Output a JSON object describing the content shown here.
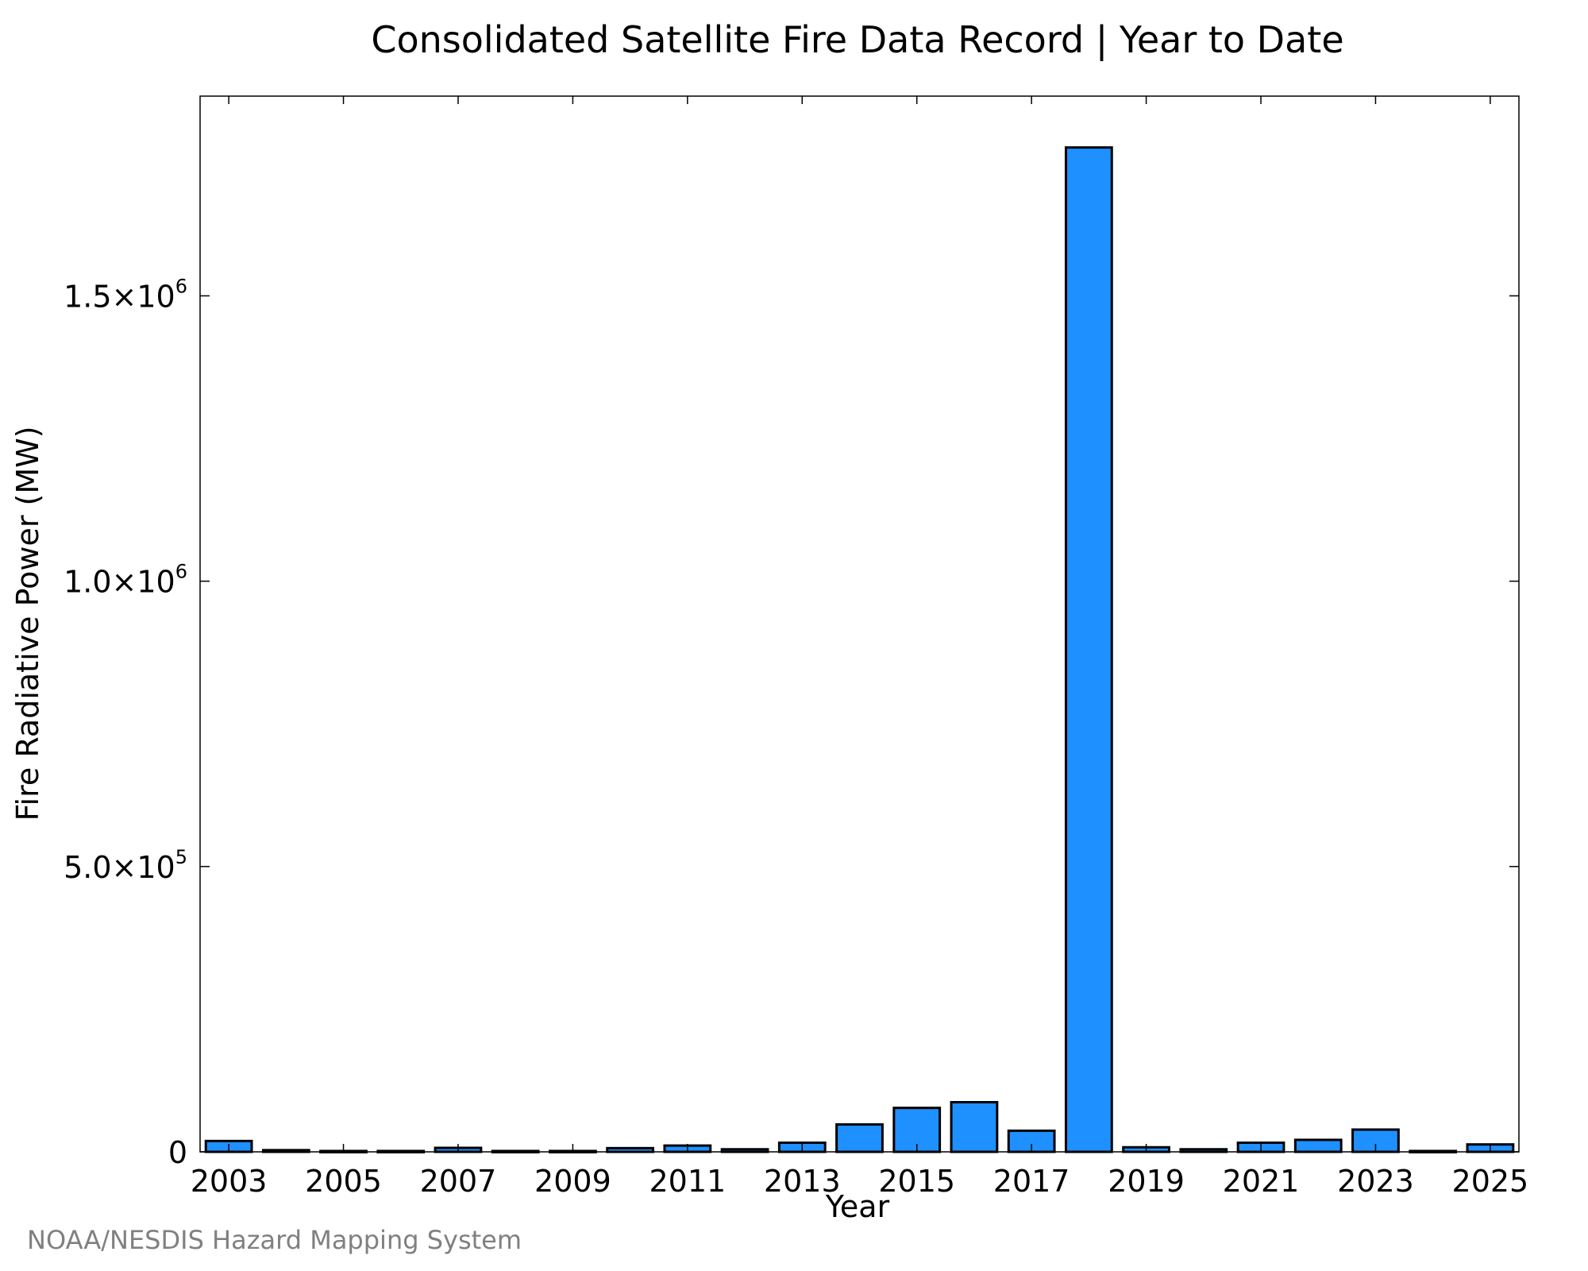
{
  "chart_data": {
    "type": "bar",
    "title": "Consolidated Satellite Fire Data Record | Year to Date",
    "xlabel": "Year",
    "ylabel": "Fire Radiative Power (MW)",
    "categories": [
      "2003",
      "2004",
      "2005",
      "2006",
      "2007",
      "2008",
      "2009",
      "2010",
      "2011",
      "2012",
      "2013",
      "2014",
      "2015",
      "2016",
      "2017",
      "2018",
      "2019",
      "2020",
      "2021",
      "2022",
      "2023",
      "2024",
      "2025"
    ],
    "x_tick_labels": [
      "2003",
      "2005",
      "2007",
      "2009",
      "2011",
      "2013",
      "2015",
      "2017",
      "2019",
      "2021",
      "2023",
      "2025"
    ],
    "values": [
      19000,
      3000,
      1500,
      1500,
      7000,
      1500,
      1500,
      6500,
      11000,
      4500,
      16000,
      48000,
      77000,
      87000,
      37000,
      1760000,
      8000,
      4500,
      16000,
      21000,
      39000,
      1500,
      13000
    ],
    "ylim": [
      0,
      1850000
    ],
    "y_ticks": [
      {
        "value": 0,
        "mantissa": "0",
        "exponent": ""
      },
      {
        "value": 500000,
        "mantissa": "5.0×10",
        "exponent": "5"
      },
      {
        "value": 1000000,
        "mantissa": "1.0×10",
        "exponent": "6"
      },
      {
        "value": 1500000,
        "mantissa": "1.5×10",
        "exponent": "6"
      }
    ],
    "bar_color": "#1e90ff",
    "bar_edge_color": "#000000",
    "grid": false
  },
  "footer": {
    "credit": "NOAA/NESDIS Hazard Mapping System"
  }
}
